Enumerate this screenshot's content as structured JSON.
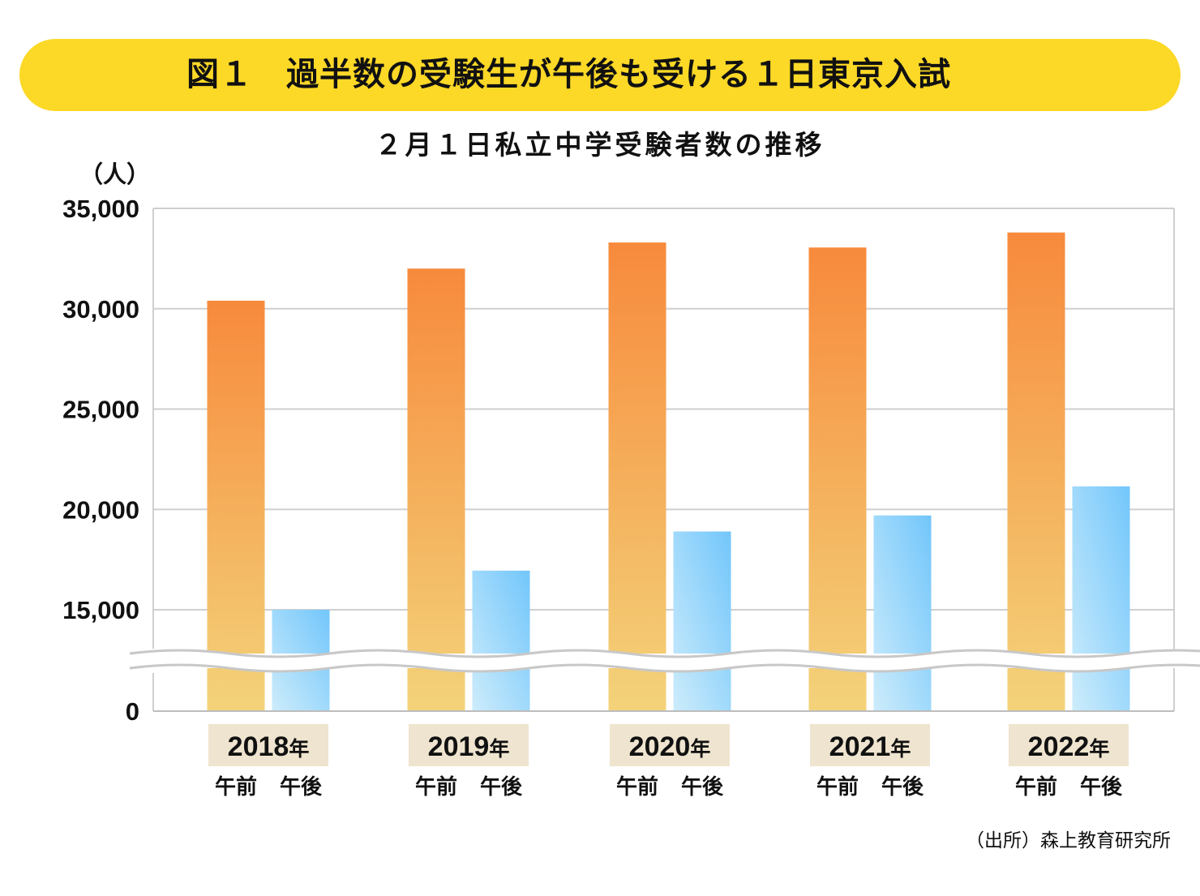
{
  "header": {
    "title": "図１　過半数の受験生が午後も受ける１日東京入試"
  },
  "chart_data": {
    "type": "bar",
    "title": "２月１日私立中学受験者数の推移",
    "ylabel": "（人）",
    "ylim": [
      0,
      35000
    ],
    "axis_break": true,
    "y_ticks": [
      "35,000",
      "30,000",
      "25,000",
      "20,000",
      "15,000",
      "0"
    ],
    "y_tick_values": [
      35000,
      30000,
      25000,
      20000,
      15000,
      0
    ],
    "categories": [
      "2018年",
      "2019年",
      "2020年",
      "2021年",
      "2022年"
    ],
    "series": [
      {
        "name": "午前",
        "values": [
          30400,
          32000,
          33300,
          33050,
          33800
        ]
      },
      {
        "name": "午後",
        "values": [
          15000,
          16950,
          18900,
          19700,
          21150
        ]
      }
    ],
    "category_label_bg": "#efe4cf",
    "colors": {
      "am_top": "#f78a3c",
      "am_bottom": "#f3d37a",
      "pm_top": "#72c6fb",
      "pm_bottom": "#cdecfb",
      "grid": "#cfcfcf",
      "banner": "#fcd827"
    },
    "grid": true
  },
  "footer": {
    "source": "（出所）森上教育研究所"
  }
}
